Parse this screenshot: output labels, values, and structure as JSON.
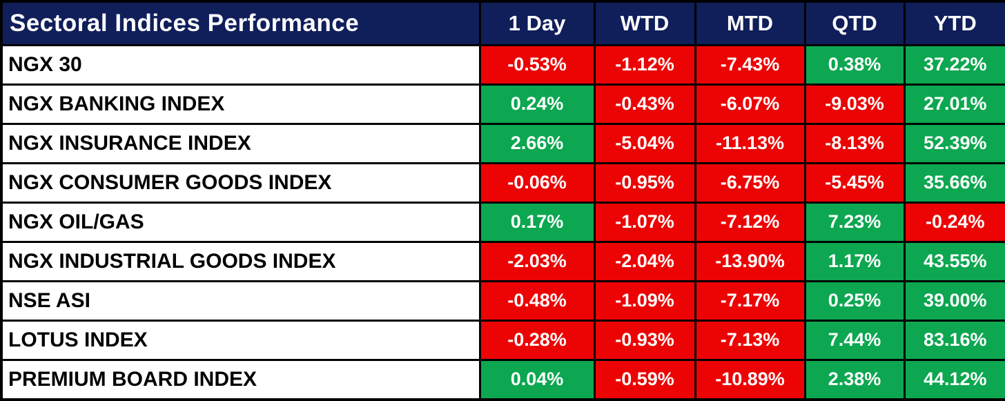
{
  "title": "Sectoral Indices Performance",
  "columns": [
    "1 Day",
    "WTD",
    "MTD",
    "QTD",
    "YTD"
  ],
  "rows": [
    {
      "label": "NGX 30",
      "values": [
        "-0.53%",
        "-1.12%",
        "-7.43%",
        "0.38%",
        "37.22%"
      ]
    },
    {
      "label": "NGX BANKING INDEX",
      "values": [
        "0.24%",
        "-0.43%",
        "-6.07%",
        "-9.03%",
        "27.01%"
      ]
    },
    {
      "label": "NGX INSURANCE INDEX",
      "values": [
        "2.66%",
        "-5.04%",
        "-11.13%",
        "-8.13%",
        "52.39%"
      ]
    },
    {
      "label": "NGX CONSUMER GOODS INDEX",
      "values": [
        "-0.06%",
        "-0.95%",
        "-6.75%",
        "-5.45%",
        "35.66%"
      ]
    },
    {
      "label": "NGX OIL/GAS",
      "values": [
        "0.17%",
        "-1.07%",
        "-7.12%",
        "7.23%",
        "-0.24%"
      ]
    },
    {
      "label": "NGX INDUSTRIAL GOODS INDEX",
      "values": [
        "-2.03%",
        "-2.04%",
        "-13.90%",
        "1.17%",
        "43.55%"
      ]
    },
    {
      "label": "NSE ASI",
      "values": [
        "-0.48%",
        "-1.09%",
        "-7.17%",
        "0.25%",
        "39.00%"
      ]
    },
    {
      "label": "LOTUS INDEX",
      "values": [
        "-0.28%",
        "-0.93%",
        "-7.13%",
        "7.44%",
        "83.16%"
      ]
    },
    {
      "label": "PREMIUM BOARD INDEX",
      "values": [
        "0.04%",
        "-0.59%",
        "-10.89%",
        "2.38%",
        "44.12%"
      ]
    }
  ],
  "colors": {
    "header_bg": "#101E5A",
    "header_text": "#FFFFFF",
    "label_text": "#000000",
    "value_text": "#FFFFFF",
    "positive_bg": "#0CA750",
    "negative_bg": "#EC0404",
    "border": "#000000"
  },
  "chart_data": {
    "type": "table",
    "title": "Sectoral Indices Performance",
    "columns": [
      "1 Day",
      "WTD",
      "MTD",
      "QTD",
      "YTD"
    ],
    "row_labels": [
      "NGX 30",
      "NGX BANKING INDEX",
      "NGX INSURANCE INDEX",
      "NGX CONSUMER GOODS INDEX",
      "NGX OIL/GAS",
      "NGX INDUSTRIAL GOODS INDEX",
      "NSE ASI",
      "LOTUS INDEX",
      "PREMIUM BOARD INDEX"
    ],
    "values_pct": [
      [
        -0.53,
        -1.12,
        -7.43,
        0.38,
        37.22
      ],
      [
        0.24,
        -0.43,
        -6.07,
        -9.03,
        27.01
      ],
      [
        2.66,
        -5.04,
        -11.13,
        -8.13,
        52.39
      ],
      [
        -0.06,
        -0.95,
        -6.75,
        -5.45,
        35.66
      ],
      [
        0.17,
        -1.07,
        -7.12,
        7.23,
        -0.24
      ],
      [
        -2.03,
        -2.04,
        -13.9,
        1.17,
        43.55
      ],
      [
        -0.48,
        -1.09,
        -7.17,
        0.25,
        39.0
      ],
      [
        -0.28,
        -0.93,
        -7.13,
        7.44,
        83.16
      ],
      [
        0.04,
        -0.59,
        -10.89,
        2.38,
        44.12
      ]
    ],
    "cell_color_rule": "negative values on red background, non-negative on green",
    "legend_position": "none",
    "grid": "black cell borders"
  }
}
